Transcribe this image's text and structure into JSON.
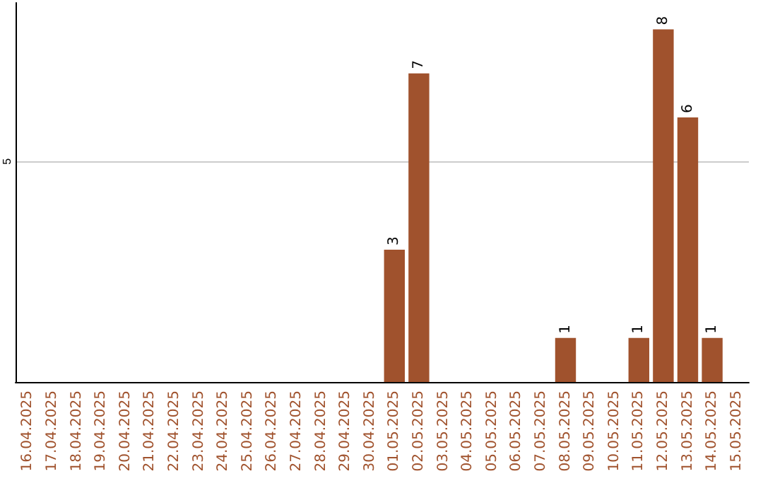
{
  "chart_data": {
    "type": "bar",
    "categories": [
      "16.04.2025",
      "17.04.2025",
      "18.04.2025",
      "19.04.2025",
      "20.04.2025",
      "21.04.2025",
      "22.04.2025",
      "23.04.2025",
      "24.04.2025",
      "25.04.2025",
      "26.04.2025",
      "27.04.2025",
      "28.04.2025",
      "29.04.2025",
      "30.04.2025",
      "01.05.2025",
      "02.05.2025",
      "03.05.2025",
      "04.05.2025",
      "05.05.2025",
      "06.05.2025",
      "07.05.2025",
      "08.05.2025",
      "09.05.2025",
      "10.05.2025",
      "11.05.2025",
      "12.05.2025",
      "13.05.2025",
      "14.05.2025",
      "15.05.2025"
    ],
    "values": [
      null,
      null,
      null,
      null,
      null,
      null,
      null,
      null,
      null,
      null,
      null,
      null,
      null,
      null,
      null,
      3,
      7,
      null,
      null,
      null,
      null,
      null,
      1,
      null,
      null,
      1,
      8,
      6,
      1,
      null
    ],
    "data_labels": true,
    "color": "#a0522d",
    "ylim": [
      0,
      8.6
    ],
    "yticks": [
      {
        "value": 0,
        "label": null
      },
      5
    ],
    "grid": "y"
  }
}
